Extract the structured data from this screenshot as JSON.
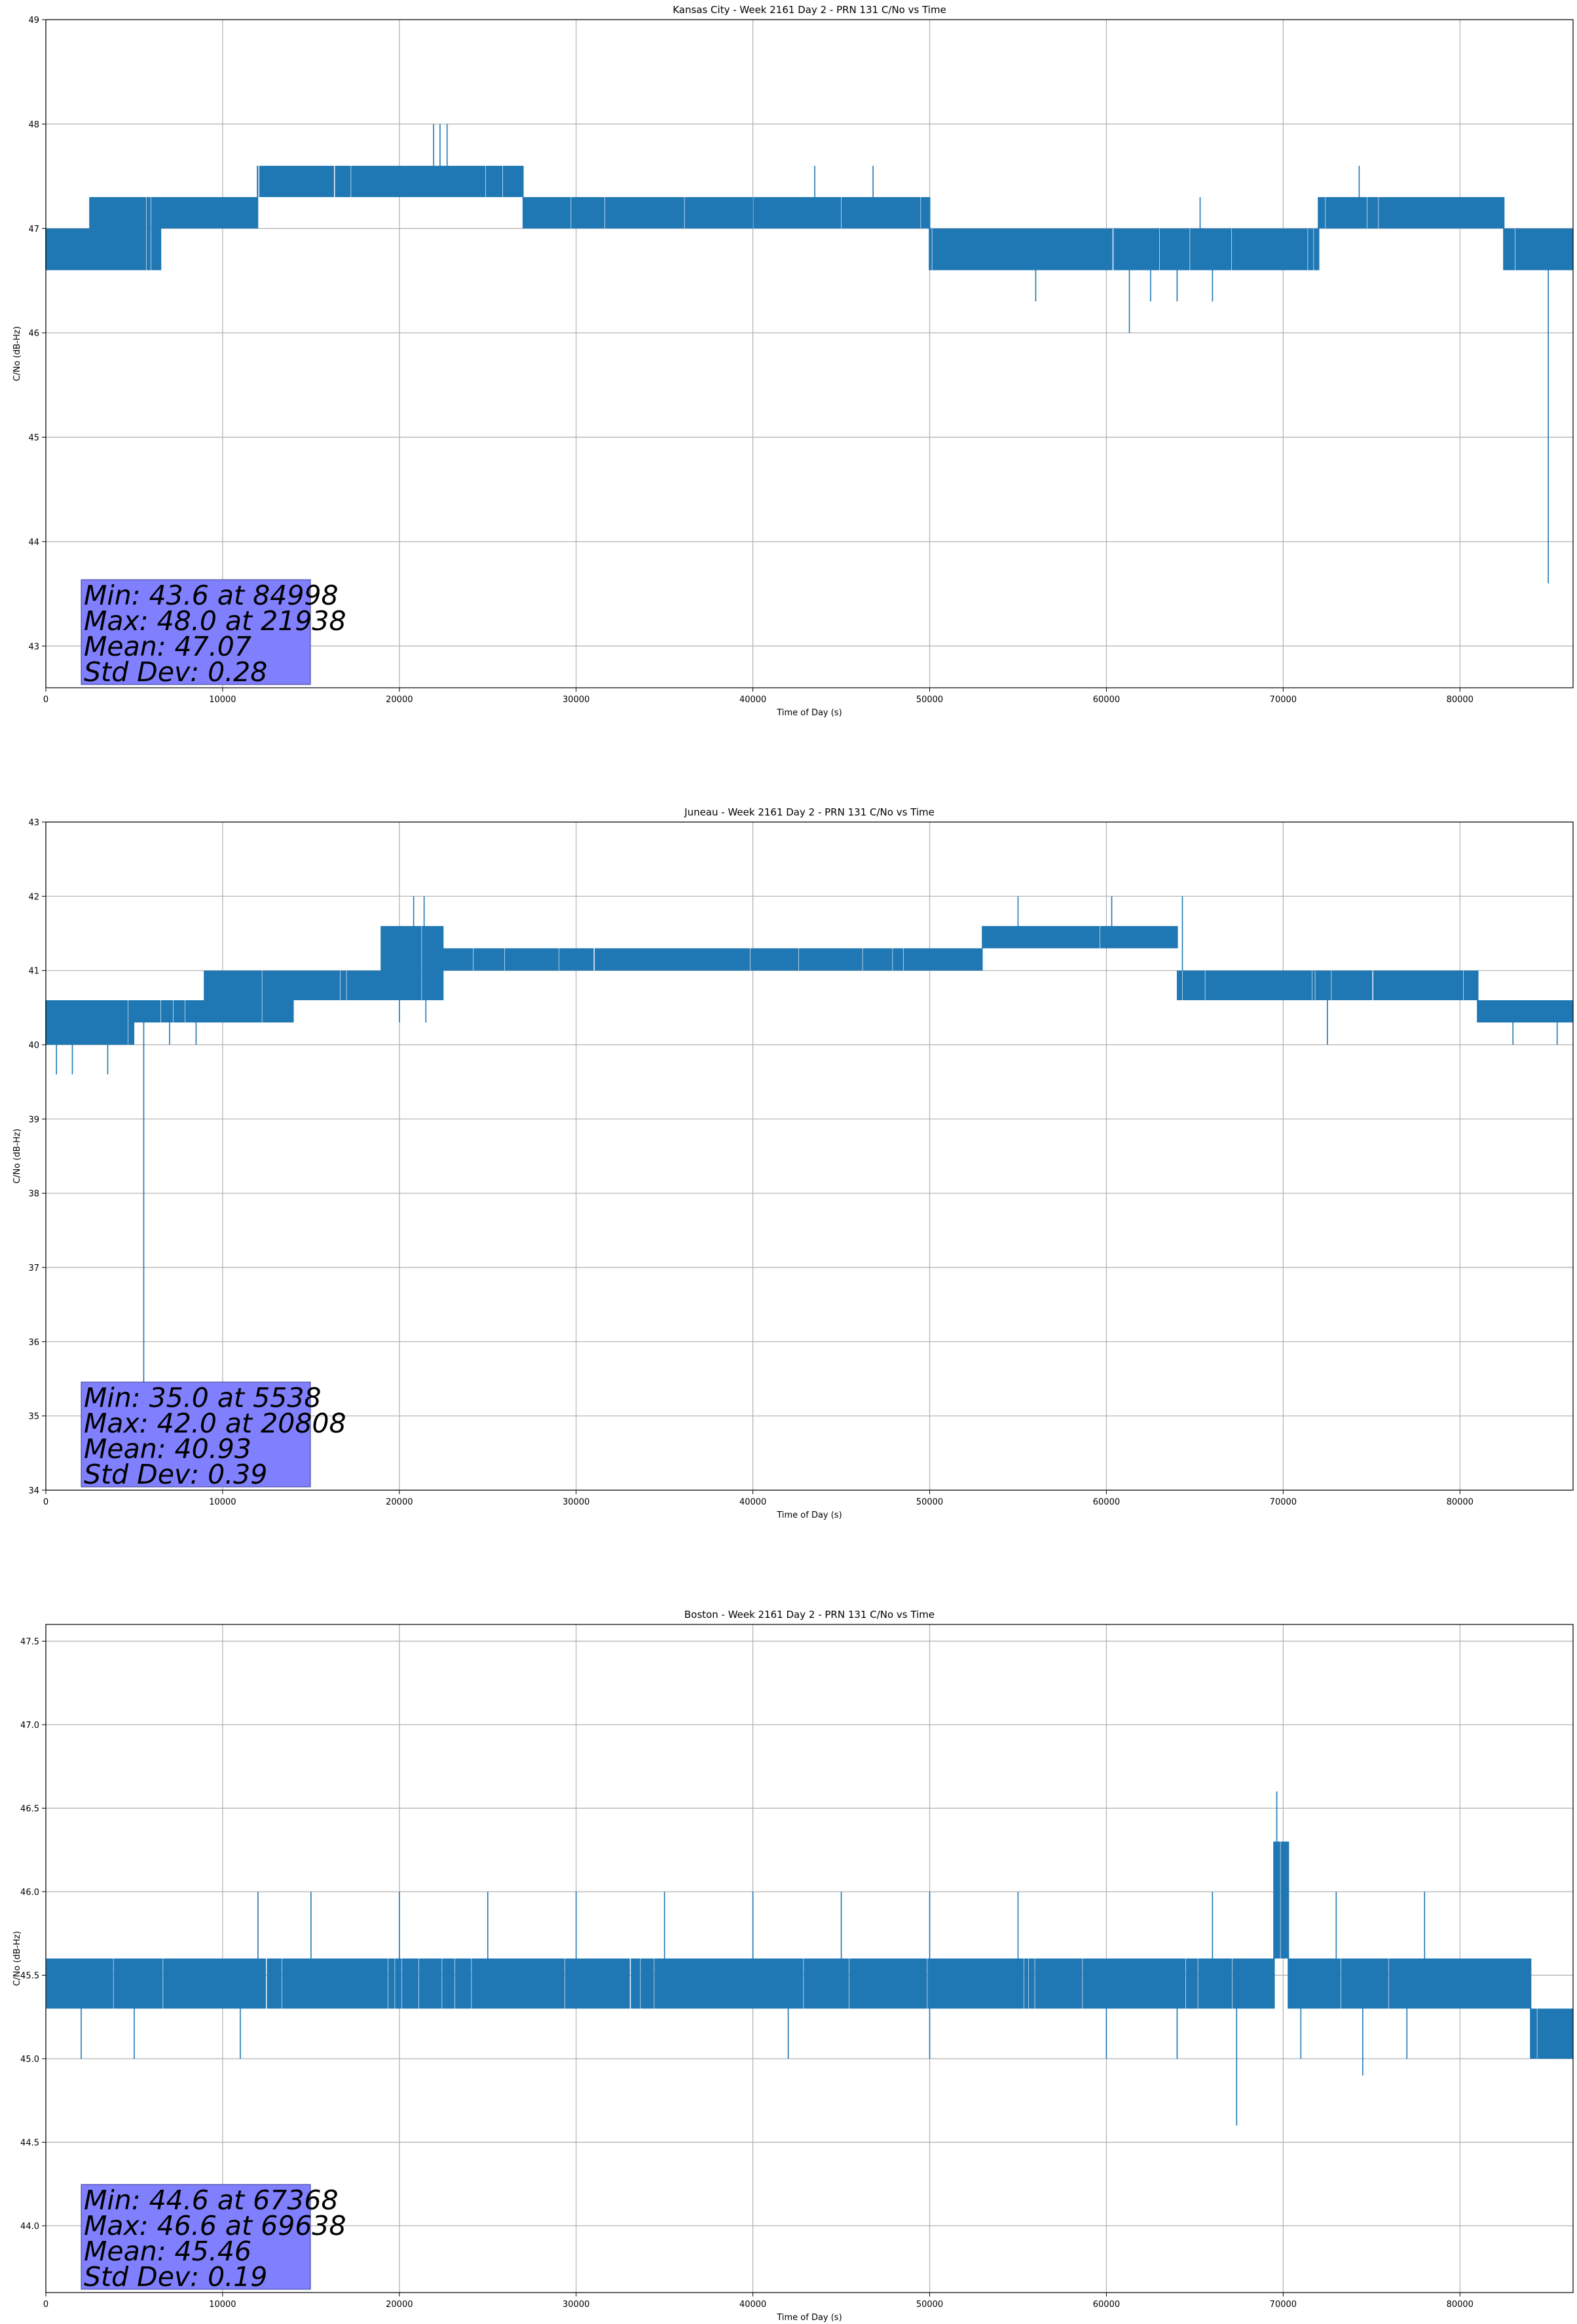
{
  "chart_data": [
    {
      "type": "line",
      "title": "Kansas City - Week 2161 Day 2 - PRN 131 C/No vs Time",
      "xlabel": "Time of Day (s)",
      "ylabel": "C/No (dB-Hz)",
      "xlim": [
        0,
        86400
      ],
      "ylim": [
        42.6,
        49.0
      ],
      "xticks": [
        0,
        10000,
        20000,
        30000,
        40000,
        50000,
        60000,
        70000,
        80000
      ],
      "yticks": [
        43,
        44,
        45,
        46,
        47,
        48,
        49
      ],
      "grid": true,
      "line_color": "#1f77b4",
      "series": [
        {
          "segments": [
            {
              "x": [
                0,
                2500
              ],
              "lo": 46.6,
              "hi": 47.0
            },
            {
              "x": [
                2500,
                6500
              ],
              "lo": 46.6,
              "hi": 47.3
            },
            {
              "x": [
                6500,
                12000
              ],
              "lo": 47.0,
              "hi": 47.3
            },
            {
              "x": [
                12000,
                27000
              ],
              "lo": 47.3,
              "hi": 47.6
            },
            {
              "x": [
                27000,
                50000
              ],
              "lo": 47.0,
              "hi": 47.3
            },
            {
              "x": [
                50000,
                72000
              ],
              "lo": 46.6,
              "hi": 47.0
            },
            {
              "x": [
                72000,
                82500
              ],
              "lo": 47.0,
              "hi": 47.3
            },
            {
              "x": [
                82500,
                86400
              ],
              "lo": 46.6,
              "hi": 47.0
            }
          ],
          "spikes": [
            {
              "x": 84998,
              "y": 43.6
            },
            {
              "x": 21938,
              "y": 48.0
            },
            {
              "x": 22300,
              "y": 48.0
            },
            {
              "x": 22700,
              "y": 48.0
            },
            {
              "x": 61300,
              "y": 46.0
            },
            {
              "x": 62500,
              "y": 46.3
            },
            {
              "x": 64000,
              "y": 46.3
            },
            {
              "x": 56000,
              "y": 46.3
            },
            {
              "x": 66000,
              "y": 46.3
            },
            {
              "x": 74300,
              "y": 47.6
            },
            {
              "x": 43500,
              "y": 47.6
            },
            {
              "x": 46800,
              "y": 47.6
            },
            {
              "x": 65300,
              "y": 47.3
            },
            {
              "x": 6500,
              "y": 46.6
            }
          ]
        }
      ],
      "stats": [
        "Min: 43.6 at 84998",
        "Max: 48.0 at 21938",
        "Mean: 47.07",
        "Std Dev: 0.28"
      ]
    },
    {
      "type": "line",
      "title": "Juneau - Week 2161 Day 2 - PRN 131 C/No vs Time",
      "xlabel": "Time of Day (s)",
      "ylabel": "C/No (dB-Hz)",
      "xlim": [
        0,
        86400
      ],
      "ylim": [
        34,
        43
      ],
      "xticks": [
        0,
        10000,
        20000,
        30000,
        40000,
        50000,
        60000,
        70000,
        80000
      ],
      "yticks": [
        34,
        35,
        36,
        37,
        38,
        39,
        40,
        41,
        42,
        43
      ],
      "grid": true,
      "line_color": "#1f77b4",
      "series": [
        {
          "segments": [
            {
              "x": [
                0,
                5000
              ],
              "lo": 40.0,
              "hi": 40.6
            },
            {
              "x": [
                5000,
                9000
              ],
              "lo": 40.3,
              "hi": 40.6
            },
            {
              "x": [
                9000,
                14000
              ],
              "lo": 40.3,
              "hi": 41.0
            },
            {
              "x": [
                14000,
                19000
              ],
              "lo": 40.6,
              "hi": 41.0
            },
            {
              "x": [
                19000,
                22500
              ],
              "lo": 40.6,
              "hi": 41.6
            },
            {
              "x": [
                22500,
                53000
              ],
              "lo": 41.0,
              "hi": 41.3
            },
            {
              "x": [
                53000,
                64000
              ],
              "lo": 41.3,
              "hi": 41.6
            },
            {
              "x": [
                64000,
                81000
              ],
              "lo": 40.6,
              "hi": 41.0
            },
            {
              "x": [
                81000,
                86400
              ],
              "lo": 40.3,
              "hi": 40.6
            }
          ],
          "spikes": [
            {
              "x": 5538,
              "y": 35.0
            },
            {
              "x": 20808,
              "y": 42.0
            },
            {
              "x": 21400,
              "y": 42.0
            },
            {
              "x": 55000,
              "y": 42.0
            },
            {
              "x": 60300,
              "y": 42.0
            },
            {
              "x": 64300,
              "y": 42.0
            },
            {
              "x": 600,
              "y": 39.6
            },
            {
              "x": 1500,
              "y": 39.6
            },
            {
              "x": 3500,
              "y": 39.6
            },
            {
              "x": 7000,
              "y": 40.0
            },
            {
              "x": 8500,
              "y": 40.0
            },
            {
              "x": 20000,
              "y": 40.3
            },
            {
              "x": 21500,
              "y": 40.3
            },
            {
              "x": 72500,
              "y": 40.0
            },
            {
              "x": 83000,
              "y": 40.0
            },
            {
              "x": 85500,
              "y": 40.0
            }
          ]
        }
      ],
      "stats": [
        "Min: 35.0 at 5538",
        "Max: 42.0 at 20808",
        "Mean: 40.93",
        "Std Dev: 0.39"
      ]
    },
    {
      "type": "line",
      "title": "Boston - Week 2161 Day 2 - PRN 131 C/No vs Time",
      "xlabel": "Time of Day (s)",
      "ylabel": "C/No (dB-Hz)",
      "xlim": [
        0,
        86400
      ],
      "ylim": [
        43.6,
        47.6
      ],
      "xticks": [
        0,
        10000,
        20000,
        30000,
        40000,
        50000,
        60000,
        70000,
        80000
      ],
      "yticks": [
        44.0,
        44.5,
        45.0,
        45.5,
        46.0,
        46.5,
        47.0,
        47.5
      ],
      "ytick_labels": [
        "44.0",
        "44.5",
        "45.0",
        "45.5",
        "46.0",
        "46.5",
        "47.0",
        "47.5"
      ],
      "grid": true,
      "line_color": "#1f77b4",
      "series": [
        {
          "segments": [
            {
              "x": [
                0,
                69500
              ],
              "lo": 45.3,
              "hi": 45.6
            },
            {
              "x": [
                69500,
                70300
              ],
              "lo": 45.6,
              "hi": 46.3
            },
            {
              "x": [
                70300,
                84000
              ],
              "lo": 45.3,
              "hi": 45.6
            },
            {
              "x": [
                84000,
                86400
              ],
              "lo": 45.0,
              "hi": 45.3
            }
          ],
          "spikes": [
            {
              "x": 67368,
              "y": 44.6
            },
            {
              "x": 69638,
              "y": 46.6
            },
            {
              "x": 12000,
              "y": 46.0
            },
            {
              "x": 15000,
              "y": 46.0
            },
            {
              "x": 20000,
              "y": 46.0
            },
            {
              "x": 25000,
              "y": 46.0
            },
            {
              "x": 30000,
              "y": 46.0
            },
            {
              "x": 35000,
              "y": 46.0
            },
            {
              "x": 40000,
              "y": 46.0
            },
            {
              "x": 45000,
              "y": 46.0
            },
            {
              "x": 50000,
              "y": 46.0
            },
            {
              "x": 55000,
              "y": 46.0
            },
            {
              "x": 66000,
              "y": 46.0
            },
            {
              "x": 73000,
              "y": 46.0
            },
            {
              "x": 78000,
              "y": 46.0
            },
            {
              "x": 2000,
              "y": 45.0
            },
            {
              "x": 5000,
              "y": 45.0
            },
            {
              "x": 11000,
              "y": 45.0
            },
            {
              "x": 42000,
              "y": 45.0
            },
            {
              "x": 50000,
              "y": 45.0
            },
            {
              "x": 60000,
              "y": 45.0
            },
            {
              "x": 64000,
              "y": 45.0
            },
            {
              "x": 71000,
              "y": 45.0
            },
            {
              "x": 74500,
              "y": 44.9
            },
            {
              "x": 77000,
              "y": 45.0
            }
          ]
        }
      ],
      "stats": [
        "Min: 44.6 at 67368",
        "Max: 46.6 at 69638",
        "Mean: 45.46",
        "Std Dev: 0.19"
      ]
    }
  ]
}
